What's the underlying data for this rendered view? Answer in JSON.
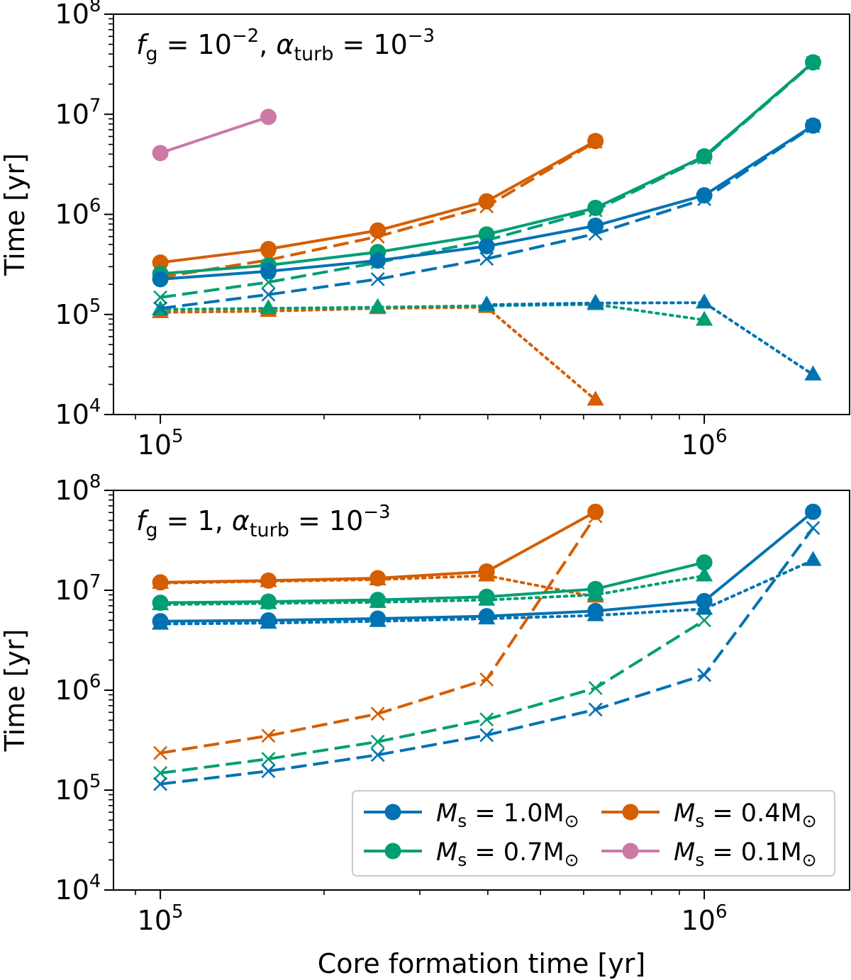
{
  "chart_data": [
    {
      "type": "line",
      "panel": "top",
      "annotation": {
        "f_g_label": "f",
        "f_g_sub": "g",
        "f_g_value": " = 10",
        "f_g_exp": "−2",
        "sep": ", ",
        "alpha_label": "α",
        "alpha_sub": "turb",
        "alpha_value": " = 10",
        "alpha_exp": "−3"
      },
      "xlabel": "",
      "ylabel": "Time [yr]",
      "xscale": "log",
      "yscale": "log",
      "xlim": [
        82000,
        1850000
      ],
      "ylim": [
        10000,
        100000000
      ],
      "xticks": [
        {
          "base": "10",
          "exp": "5",
          "value": 100000
        },
        {
          "base": "10",
          "exp": "6",
          "value": 1000000
        }
      ],
      "yticks": [
        {
          "base": "10",
          "exp": "4",
          "value": 10000
        },
        {
          "base": "10",
          "exp": "5",
          "value": 100000
        },
        {
          "base": "10",
          "exp": "6",
          "value": 1000000
        },
        {
          "base": "10",
          "exp": "7",
          "value": 10000000
        },
        {
          "base": "10",
          "exp": "8",
          "value": 100000000
        }
      ],
      "series": [
        {
          "name": "M_s = 0.1 solid",
          "color": "#cc79a7",
          "style": "solid",
          "marker": "circle",
          "x": [
            100000,
            158000
          ],
          "y": [
            4100000,
            9400000
          ]
        },
        {
          "name": "M_s = 0.4 solid",
          "color": "#d55e00",
          "style": "solid",
          "marker": "circle",
          "x": [
            100000,
            158000,
            251000,
            398000,
            631000
          ],
          "y": [
            330000,
            450000,
            690000,
            1350000,
            5400000
          ]
        },
        {
          "name": "M_s = 0.4 dashed",
          "color": "#d55e00",
          "style": "dashed",
          "marker": "x",
          "x": [
            100000,
            158000,
            251000,
            398000,
            631000
          ],
          "y": [
            235000,
            350000,
            600000,
            1200000,
            5300000
          ]
        },
        {
          "name": "M_s = 0.4 dotted",
          "color": "#d55e00",
          "style": "dotted",
          "marker": "triangle",
          "x": [
            100000,
            158000,
            251000,
            398000,
            631000
          ],
          "y": [
            105000,
            108000,
            115000,
            118000,
            14000
          ]
        },
        {
          "name": "M_s = 0.7 solid",
          "color": "#009e73",
          "style": "solid",
          "marker": "circle",
          "x": [
            100000,
            158000,
            251000,
            398000,
            631000,
            1000000,
            1585000
          ],
          "y": [
            255000,
            310000,
            420000,
            630000,
            1160000,
            3800000,
            33000000
          ]
        },
        {
          "name": "M_s = 0.7 dashed",
          "color": "#009e73",
          "style": "dashed",
          "marker": "x",
          "x": [
            100000,
            158000,
            251000,
            398000,
            631000,
            1000000,
            1585000
          ],
          "y": [
            148000,
            210000,
            330000,
            550000,
            1100000,
            3700000,
            32500000
          ]
        },
        {
          "name": "M_s = 0.7 dotted",
          "color": "#009e73",
          "style": "dotted",
          "marker": "triangle",
          "x": [
            100000,
            158000,
            251000,
            398000,
            631000,
            1000000
          ],
          "y": [
            112000,
            115000,
            118000,
            122000,
            126000,
            88000
          ]
        },
        {
          "name": "M_s = 1.0 solid",
          "color": "#0072b2",
          "style": "solid",
          "marker": "circle",
          "x": [
            100000,
            158000,
            251000,
            398000,
            631000,
            1000000,
            1585000
          ],
          "y": [
            225000,
            270000,
            345000,
            480000,
            770000,
            1550000,
            7700000
          ]
        },
        {
          "name": "M_s = 1.0 dashed",
          "color": "#0072b2",
          "style": "dashed",
          "marker": "x",
          "x": [
            100000,
            158000,
            251000,
            398000,
            631000,
            1000000,
            1585000
          ],
          "y": [
            115000,
            158000,
            225000,
            360000,
            640000,
            1420000,
            7600000
          ]
        },
        {
          "name": "M_s = 1.0 dotted",
          "color": "#0072b2",
          "style": "dotted",
          "marker": "triangle",
          "x": [
            398000,
            631000,
            1000000,
            1585000
          ],
          "y": [
            125000,
            130000,
            131000,
            25000
          ]
        }
      ]
    },
    {
      "type": "line",
      "panel": "bottom",
      "annotation": {
        "f_g_label": "f",
        "f_g_sub": "g",
        "f_g_value": " = 1",
        "f_g_exp": "",
        "sep": ", ",
        "alpha_label": "α",
        "alpha_sub": "turb",
        "alpha_value": " = 10",
        "alpha_exp": "−3"
      },
      "xlabel": "Core formation time [yr]",
      "ylabel": "Time [yr]",
      "xscale": "log",
      "yscale": "log",
      "xlim": [
        82000,
        1850000
      ],
      "ylim": [
        10000,
        100000000
      ],
      "xticks": [
        {
          "base": "10",
          "exp": "5",
          "value": 100000
        },
        {
          "base": "10",
          "exp": "6",
          "value": 1000000
        }
      ],
      "yticks": [
        {
          "base": "10",
          "exp": "4",
          "value": 10000
        },
        {
          "base": "10",
          "exp": "5",
          "value": 100000
        },
        {
          "base": "10",
          "exp": "6",
          "value": 1000000
        },
        {
          "base": "10",
          "exp": "7",
          "value": 10000000
        },
        {
          "base": "10",
          "exp": "8",
          "value": 100000000
        }
      ],
      "series": [
        {
          "name": "M_s = 0.4 dotted",
          "color": "#d55e00",
          "style": "dotted",
          "marker": "triangle",
          "x": [
            100000,
            158000,
            251000,
            398000,
            631000
          ],
          "y": [
            11800000,
            12300000,
            12800000,
            14000000,
            8600000
          ]
        },
        {
          "name": "M_s = 0.4 dashed",
          "color": "#d55e00",
          "style": "dashed",
          "marker": "x",
          "x": [
            100000,
            158000,
            251000,
            398000,
            631000
          ],
          "y": [
            235000,
            350000,
            580000,
            1280000,
            55000000
          ]
        },
        {
          "name": "M_s = 0.4 solid",
          "color": "#d55e00",
          "style": "solid",
          "marker": "circle",
          "x": [
            100000,
            158000,
            251000,
            398000,
            631000
          ],
          "y": [
            12000000,
            12500000,
            13200000,
            15400000,
            61000000
          ]
        },
        {
          "name": "M_s = 0.7 dotted",
          "color": "#009e73",
          "style": "dotted",
          "marker": "triangle",
          "x": [
            100000,
            158000,
            251000,
            398000,
            631000,
            1000000
          ],
          "y": [
            7200000,
            7400000,
            7600000,
            8000000,
            9000000,
            14000000
          ]
        },
        {
          "name": "M_s = 0.7 dashed",
          "color": "#009e73",
          "style": "dashed",
          "marker": "x",
          "x": [
            100000,
            158000,
            251000,
            398000,
            631000,
            1000000
          ],
          "y": [
            148000,
            205000,
            305000,
            510000,
            1050000,
            5000000
          ]
        },
        {
          "name": "M_s = 0.7 solid",
          "color": "#009e73",
          "style": "solid",
          "marker": "circle",
          "x": [
            100000,
            158000,
            251000,
            398000,
            631000,
            1000000
          ],
          "y": [
            7500000,
            7700000,
            8000000,
            8600000,
            10300000,
            19000000
          ]
        },
        {
          "name": "M_s = 1.0 dotted",
          "color": "#0072b2",
          "style": "dotted",
          "marker": "triangle",
          "x": [
            100000,
            158000,
            251000,
            398000,
            631000,
            1000000,
            1585000
          ],
          "y": [
            4600000,
            4700000,
            4900000,
            5200000,
            5600000,
            6500000,
            20000000
          ]
        },
        {
          "name": "M_s = 1.0 dashed",
          "color": "#0072b2",
          "style": "dashed",
          "marker": "x",
          "x": [
            100000,
            158000,
            251000,
            398000,
            631000,
            1000000,
            1585000
          ],
          "y": [
            115000,
            155000,
            225000,
            355000,
            640000,
            1420000,
            42000000
          ]
        },
        {
          "name": "M_s = 1.0 solid",
          "color": "#0072b2",
          "style": "solid",
          "marker": "circle",
          "x": [
            100000,
            158000,
            251000,
            398000,
            631000,
            1000000,
            1585000
          ],
          "y": [
            4900000,
            5000000,
            5200000,
            5500000,
            6200000,
            7800000,
            61000000
          ]
        }
      ],
      "legend": {
        "placement": "lower-right",
        "entries": [
          {
            "label": "M",
            "sub": "s",
            "value": " = 1.0M",
            "suffix": "⊙",
            "color": "#0072b2"
          },
          {
            "label": "M",
            "sub": "s",
            "value": " = 0.4M",
            "suffix": "⊙",
            "color": "#d55e00"
          },
          {
            "label": "M",
            "sub": "s",
            "value": " = 0.7M",
            "suffix": "⊙",
            "color": "#009e73"
          },
          {
            "label": "M",
            "sub": "s",
            "value": " = 0.1M",
            "suffix": "⊙",
            "color": "#cc79a7"
          }
        ]
      }
    }
  ]
}
